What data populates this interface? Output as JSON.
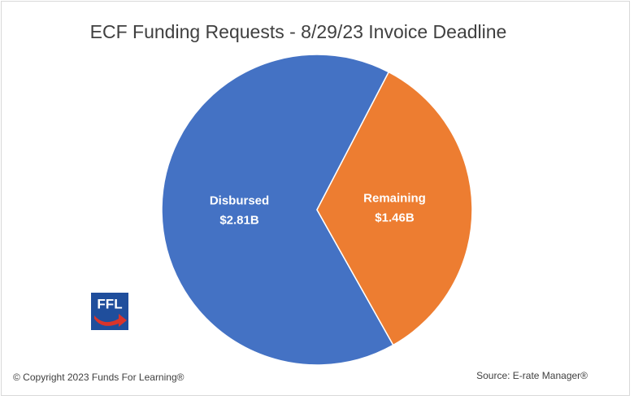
{
  "chart_data": {
    "type": "pie",
    "title": "ECF Funding Requests - 8/29/23 Invoice Deadline",
    "categories": [
      "Disbursed",
      "Remaining"
    ],
    "values": [
      2.81,
      1.46
    ],
    "value_labels": [
      "$2.81B",
      "$1.46B"
    ],
    "colors": [
      "#4472c4",
      "#ed7d31"
    ]
  },
  "footer": {
    "copyright": "© Copyright 2023 Funds For Learning®",
    "source": "Source: E-rate Manager®"
  },
  "logo": "FFL"
}
